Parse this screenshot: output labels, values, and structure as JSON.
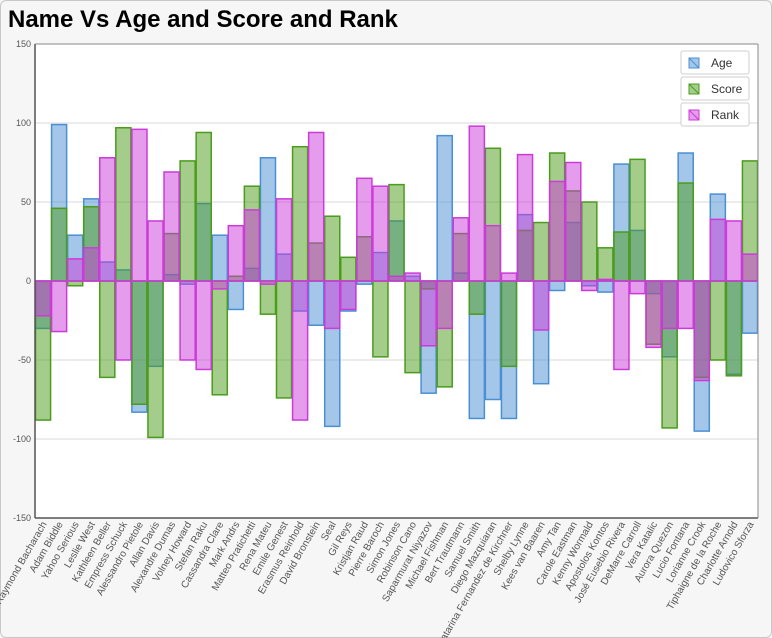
{
  "chart_data": {
    "type": "bar",
    "title": "Name Vs Age and Score and Rank",
    "ylim": [
      -150,
      150
    ],
    "yticks": [
      -150,
      -100,
      -50,
      0,
      50,
      100,
      150
    ],
    "grid": true,
    "legend_position": "top-right",
    "categories": [
      "Raymond Bacharach",
      "Adam Biddle",
      "Yahoo Serious",
      "Leslie West",
      "Kathleen Beller",
      "Empress Schuck",
      "Alessandro Pietole",
      "Allan Davis",
      "Alexandre Dumas",
      "Volney Howard",
      "Stefan Raku",
      "Cassandra Clare",
      "Mark Andrs",
      "Matteo Pratichetti",
      "Rena Mateu",
      "Emile Genest",
      "Erasmus Reinhold",
      "David Bronstein",
      "Seal",
      "Gil Reys",
      "Kristjan Raud",
      "Pierre Baroch",
      "Simon Jones",
      "Robinson Cano",
      "Saparmurat Niyazov",
      "Michael Fishman",
      "Bert Trautmann",
      "Samuel Smith",
      "Diego Mazquiaran",
      "Catarina Fernandez de Kirchner",
      "Shelby Lynne",
      "Kees van Baaren",
      "Amy Tan",
      "Carole Eastman",
      "Kenny Wormald",
      "Apostolos Kontos",
      "José Eusebio Rivera",
      "DeMarre Carroll",
      "Vera Katalic",
      "Aurora Quezon",
      "Lucio Fontana",
      "Lorianne Crook",
      "Tiphaigne de la Roche",
      "Charlotte Arnold",
      "Ludovico Sforza"
    ],
    "series": [
      {
        "name": "Age",
        "color": "#4a8fd4",
        "values": [
          -30,
          99,
          29,
          52,
          12,
          7,
          -83,
          -54,
          4,
          -2,
          49,
          29,
          -18,
          8,
          78,
          17,
          -19,
          -28,
          -92,
          -19,
          -2,
          18,
          38,
          3,
          -71,
          92,
          5,
          -87,
          -75,
          -87,
          42,
          -65,
          -6,
          37,
          -3,
          -7,
          74,
          32,
          -8,
          -48,
          81,
          -95,
          55,
          -59,
          -33
        ]
      },
      {
        "name": "Score",
        "color": "#4a9c1a",
        "values": [
          -88,
          46,
          -3,
          47,
          -61,
          97,
          -78,
          -99,
          30,
          76,
          94,
          -72,
          3,
          60,
          -21,
          -74,
          85,
          24,
          41,
          15,
          28,
          -48,
          61,
          -58,
          -5,
          -67,
          30,
          -21,
          84,
          -54,
          32,
          37,
          81,
          57,
          50,
          21,
          31,
          77,
          -40,
          -93,
          62,
          -61,
          -50,
          -60,
          76
        ]
      },
      {
        "name": "Rank",
        "color": "#cc3ad9",
        "values": [
          -22,
          -32,
          14,
          21,
          78,
          -50,
          96,
          38,
          69,
          -50,
          -56,
          -5,
          35,
          45,
          -2,
          52,
          -88,
          94,
          -30,
          -18,
          65,
          60,
          3,
          5,
          -41,
          -30,
          40,
          98,
          35,
          5,
          80,
          -31,
          63,
          75,
          -6,
          1,
          -56,
          -8,
          -42,
          -30,
          -30,
          -63,
          39,
          38,
          17
        ]
      }
    ]
  }
}
